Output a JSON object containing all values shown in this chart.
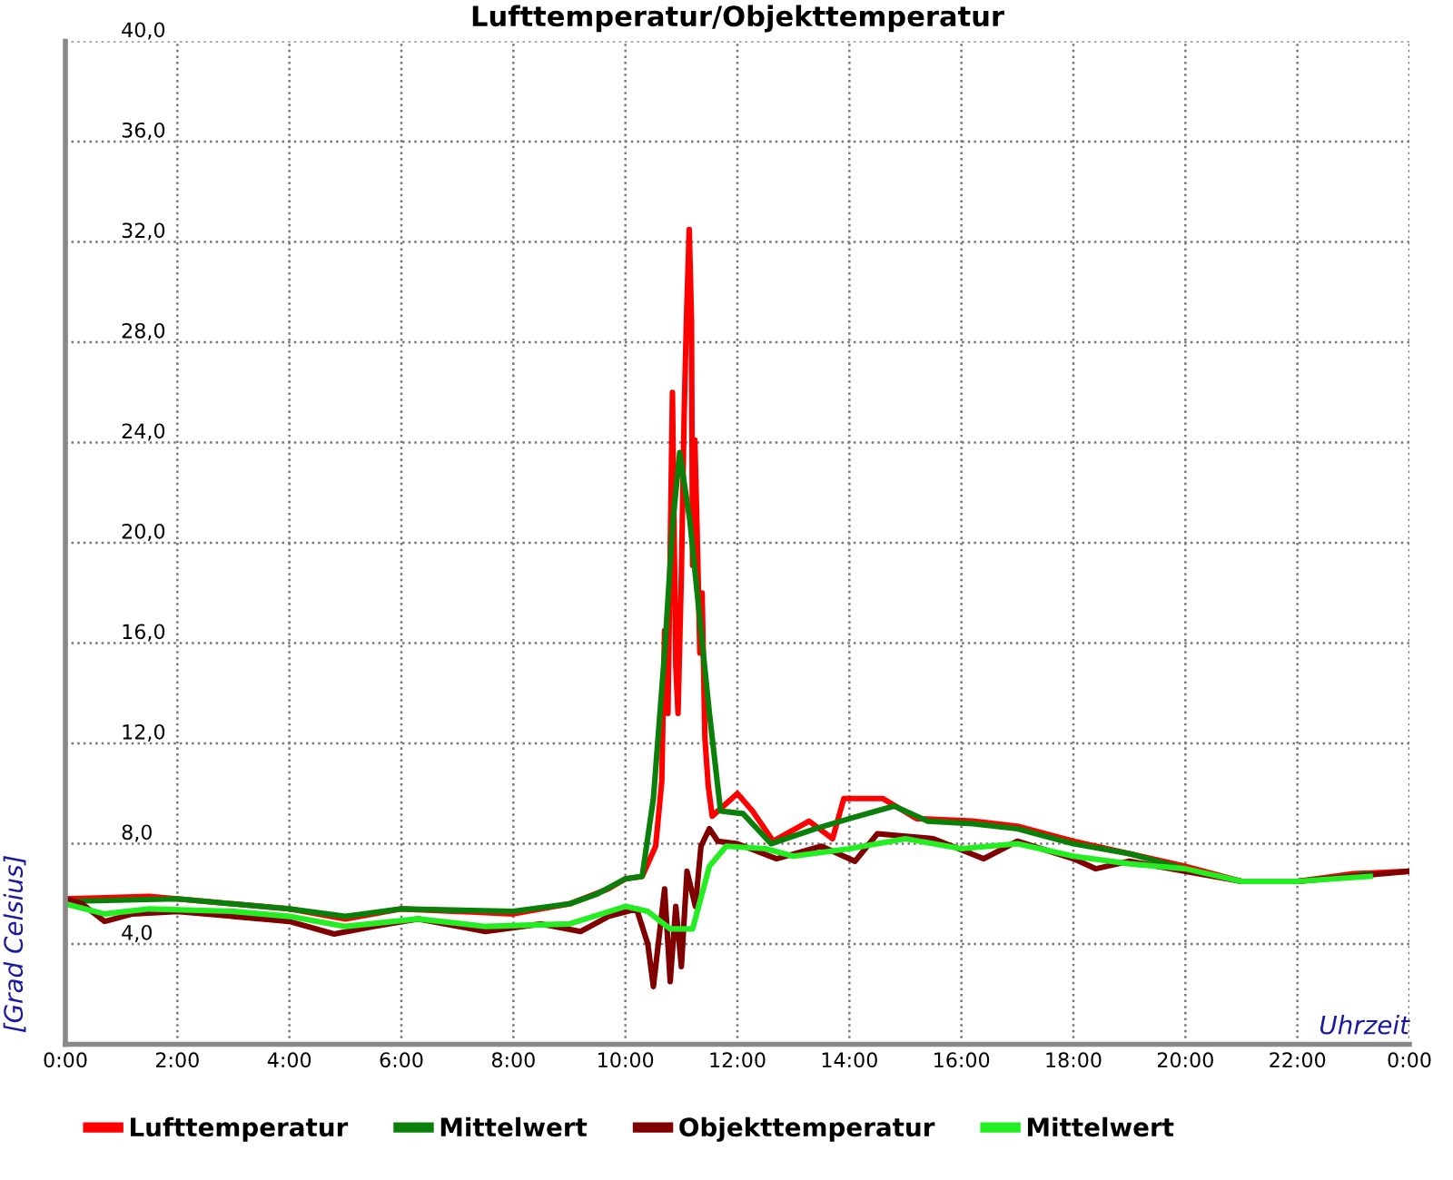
{
  "chart_data": {
    "type": "line",
    "title": "Lufttemperatur/Objekttemperatur",
    "xlabel": "Uhrzeit",
    "ylabel": "[Grad Celsius]",
    "xlim": [
      0,
      24
    ],
    "xticks": [
      {
        "value": 0,
        "label": "0:00"
      },
      {
        "value": 2,
        "label": "2:00"
      },
      {
        "value": 4,
        "label": "4:00"
      },
      {
        "value": 6,
        "label": "6:00"
      },
      {
        "value": 8,
        "label": "8:00"
      },
      {
        "value": 10,
        "label": "10:00"
      },
      {
        "value": 12,
        "label": "12:00"
      },
      {
        "value": 14,
        "label": "14:00"
      },
      {
        "value": 16,
        "label": "16:00"
      },
      {
        "value": 18,
        "label": "18:00"
      },
      {
        "value": 20,
        "label": "20:00"
      },
      {
        "value": 22,
        "label": "22:00"
      },
      {
        "value": 24,
        "label": "0:00"
      }
    ],
    "ylim": [
      0,
      40
    ],
    "yticks": [
      {
        "value": 4,
        "label": "4,0"
      },
      {
        "value": 8,
        "label": "8,0"
      },
      {
        "value": 12,
        "label": "12,0"
      },
      {
        "value": 16,
        "label": "16,0"
      },
      {
        "value": 20,
        "label": "20,0"
      },
      {
        "value": 24,
        "label": "24,0"
      },
      {
        "value": 28,
        "label": "28,0"
      },
      {
        "value": 32,
        "label": "32,0"
      },
      {
        "value": 36,
        "label": "36,0"
      },
      {
        "value": 40,
        "label": "40,0"
      }
    ],
    "grid": true,
    "legend": "bottom",
    "line_style": "solid",
    "marker": "none",
    "series": [
      {
        "name": "Lufttemperatur",
        "color": "#ff0000",
        "x": [
          0,
          1.5,
          4,
          5,
          6,
          8,
          9,
          9.7,
          10,
          10.3,
          10.54,
          10.65,
          10.7,
          10.76,
          10.84,
          10.9,
          10.94,
          11.0,
          11.05,
          11.09,
          11.14,
          11.18,
          11.2,
          11.24,
          11.28,
          11.33,
          11.37,
          11.42,
          11.48,
          11.55,
          12.0,
          12.27,
          12.64,
          13.28,
          13.7,
          13.9,
          14.6,
          15.2,
          16.2,
          17,
          18,
          19,
          20,
          20.5,
          21,
          22,
          23,
          24
        ],
        "values": [
          5.8,
          5.9,
          5.4,
          5.0,
          5.4,
          5.2,
          5.6,
          6.2,
          6.6,
          6.7,
          7.9,
          10.5,
          16.5,
          13.2,
          26.0,
          15.1,
          13.2,
          18.8,
          25.2,
          28.9,
          32.5,
          28.9,
          19.1,
          24.1,
          20.5,
          15.6,
          18.0,
          12.2,
          10.3,
          9.1,
          10.0,
          9.3,
          8.1,
          8.9,
          8.2,
          9.8,
          9.8,
          9.0,
          8.9,
          8.7,
          8.1,
          7.6,
          7.1,
          6.8,
          6.5,
          6.5,
          6.8,
          6.9
        ]
      },
      {
        "name": "Mittelwert",
        "color": "#0a800a",
        "x": [
          0,
          2,
          4,
          5,
          6,
          8,
          9,
          9.5,
          10,
          10.3,
          10.5,
          10.7,
          10.85,
          10.97,
          11.15,
          11.3,
          11.5,
          11.7,
          12.1,
          12.6,
          13.4,
          14.0,
          14.8,
          15.4,
          16.2,
          17,
          18,
          19,
          20,
          21,
          22,
          23.3
        ],
        "values": [
          5.7,
          5.8,
          5.4,
          5.1,
          5.4,
          5.3,
          5.6,
          6.0,
          6.6,
          6.7,
          9.8,
          15.6,
          20.9,
          23.6,
          20.9,
          17.6,
          13.2,
          9.3,
          9.2,
          8.0,
          8.6,
          9.0,
          9.5,
          8.9,
          8.8,
          8.6,
          8.0,
          7.6,
          7.0,
          6.5,
          6.5,
          6.8
        ]
      },
      {
        "name": "Objekttemperatur",
        "color": "#800000",
        "x": [
          0,
          0.3,
          0.7,
          1.2,
          2,
          3,
          4,
          4.8,
          5.5,
          6.3,
          7.5,
          8.5,
          9.2,
          9.7,
          10.2,
          10.4,
          10.5,
          10.7,
          10.8,
          10.9,
          11.0,
          11.1,
          11.25,
          11.35,
          11.5,
          11.65,
          12,
          12.7,
          13.5,
          14.1,
          14.5,
          15.5,
          16.4,
          17,
          18,
          18.4,
          19,
          20,
          21,
          22,
          23,
          24
        ],
        "values": [
          5.8,
          5.6,
          4.9,
          5.2,
          5.3,
          5.1,
          4.9,
          4.4,
          4.7,
          5.0,
          4.5,
          4.8,
          4.5,
          5.1,
          5.4,
          4.0,
          2.3,
          6.2,
          2.5,
          5.5,
          3.1,
          6.9,
          5.5,
          7.9,
          8.6,
          8.1,
          8.0,
          7.4,
          7.9,
          7.3,
          8.4,
          8.2,
          7.4,
          8.1,
          7.4,
          7.0,
          7.3,
          6.9,
          6.5,
          6.5,
          6.7,
          6.9
        ]
      },
      {
        "name": "Mittelwert",
        "color": "#22ee22",
        "x": [
          0,
          0.7,
          1.5,
          3,
          4,
          5,
          6.3,
          7.5,
          9,
          10,
          10.4,
          10.8,
          11.2,
          11.5,
          11.8,
          12.5,
          13,
          14,
          15,
          16,
          17,
          18,
          19,
          20,
          21,
          22,
          23.3
        ],
        "values": [
          5.6,
          5.2,
          5.4,
          5.3,
          5.1,
          4.7,
          5.0,
          4.7,
          4.8,
          5.5,
          5.3,
          4.6,
          4.6,
          7.1,
          7.9,
          7.8,
          7.5,
          7.8,
          8.2,
          7.8,
          8.0,
          7.5,
          7.2,
          7.0,
          6.5,
          6.5,
          6.7
        ]
      }
    ]
  }
}
